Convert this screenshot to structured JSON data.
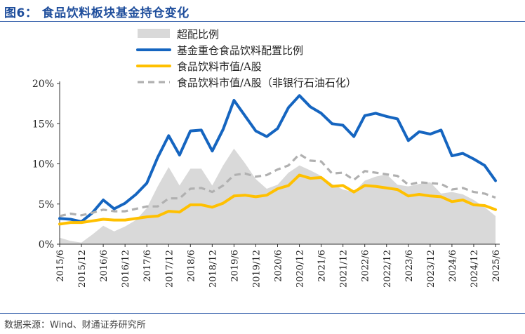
{
  "page": {
    "title": "图6：  食品饮料板块基金持仓变化",
    "source": "数据来源：Wind、财通证券研究所"
  },
  "chart_data": {
    "type": "line",
    "title": "图6：  食品饮料板块基金持仓变化",
    "xlabel": "",
    "ylabel": "",
    "ylim": [
      0,
      20
    ],
    "yticks": [
      0,
      5,
      10,
      15,
      20
    ],
    "ytick_labels": [
      "0%",
      "5%",
      "10%",
      "15%",
      "20%"
    ],
    "xtick_labels": [
      "2015/6",
      "2015/12",
      "2016/6",
      "2016/12",
      "2017/6",
      "2017/12",
      "2018/6",
      "2018/12",
      "2019/6",
      "2019/12",
      "2020/6",
      "2020/12",
      "2021/6",
      "2021/12",
      "2022/6",
      "2022/12",
      "2023/6",
      "2023/12",
      "2024/6",
      "2024/12",
      "2025/6"
    ],
    "grid": false,
    "legend_position": "top",
    "x": [
      "2015/6",
      "2015/9",
      "2015/12",
      "2016/3",
      "2016/6",
      "2016/9",
      "2016/12",
      "2017/3",
      "2017/6",
      "2017/9",
      "2017/12",
      "2018/3",
      "2018/6",
      "2018/9",
      "2018/12",
      "2019/3",
      "2019/6",
      "2019/9",
      "2019/12",
      "2020/3",
      "2020/6",
      "2020/9",
      "2020/12",
      "2021/3",
      "2021/6",
      "2021/9",
      "2021/12",
      "2022/3",
      "2022/6",
      "2022/9",
      "2022/12",
      "2023/3",
      "2023/6",
      "2023/9",
      "2023/12",
      "2024/3",
      "2024/6",
      "2024/9",
      "2024/12",
      "2025/3",
      "2025/6"
    ],
    "series": [
      {
        "name": "超配比例",
        "style": "area",
        "color": "#d9d9d9",
        "values": [
          0.8,
          0.4,
          0.2,
          1.2,
          2.3,
          1.6,
          2.2,
          3.0,
          4.5,
          7.2,
          9.6,
          7.3,
          9.4,
          9.4,
          7.3,
          9.8,
          11.9,
          10.1,
          8.1,
          6.9,
          7.4,
          8.9,
          9.8,
          9.2,
          8.5,
          7.5,
          6.8,
          6.5,
          7.9,
          8.4,
          8.7,
          7.4,
          7.2,
          7.5,
          7.7,
          6.3,
          6.5,
          6.2,
          5.5,
          4.6,
          3.5
        ]
      },
      {
        "name": "基金重仓食品饮料配置比例",
        "style": "solid",
        "color": "#1565c0",
        "values": [
          3.2,
          3.1,
          2.8,
          3.9,
          5.5,
          4.4,
          5.1,
          6.2,
          7.6,
          10.8,
          13.5,
          11.1,
          14.1,
          14.2,
          11.6,
          14.3,
          17.9,
          16.0,
          14.1,
          13.4,
          14.4,
          17.0,
          18.5,
          17.1,
          16.3,
          15.0,
          14.8,
          13.4,
          16.0,
          16.3,
          15.9,
          15.6,
          12.9,
          14.0,
          13.7,
          14.2,
          11.0,
          11.3,
          10.6,
          9.8,
          7.9
        ]
      },
      {
        "name": "食品饮料市值/A股",
        "style": "solid",
        "color": "#ffc000",
        "values": [
          2.5,
          2.7,
          2.7,
          2.9,
          3.1,
          3.0,
          3.0,
          3.2,
          3.4,
          3.5,
          4.1,
          4.0,
          4.9,
          4.9,
          4.6,
          5.1,
          6.0,
          6.1,
          5.9,
          6.1,
          6.9,
          7.3,
          8.6,
          8.2,
          8.3,
          7.2,
          7.3,
          6.5,
          7.3,
          7.2,
          7.0,
          6.8,
          6.0,
          6.2,
          6.0,
          5.9,
          5.3,
          5.5,
          4.9,
          4.8,
          4.3
        ]
      },
      {
        "name": "食品饮料市值/A股（非银行石油石化）",
        "style": "dashed",
        "color": "#b0b0b0",
        "values": [
          3.5,
          3.8,
          3.6,
          3.9,
          4.3,
          4.1,
          4.1,
          4.4,
          4.7,
          4.7,
          5.7,
          5.7,
          6.9,
          7.0,
          6.5,
          7.3,
          8.6,
          8.8,
          8.4,
          8.6,
          9.3,
          9.8,
          11.2,
          10.4,
          10.3,
          8.8,
          8.9,
          8.0,
          9.1,
          8.9,
          8.7,
          8.5,
          7.4,
          7.7,
          7.6,
          7.5,
          6.8,
          7.0,
          6.5,
          6.3,
          5.8
        ]
      }
    ]
  }
}
